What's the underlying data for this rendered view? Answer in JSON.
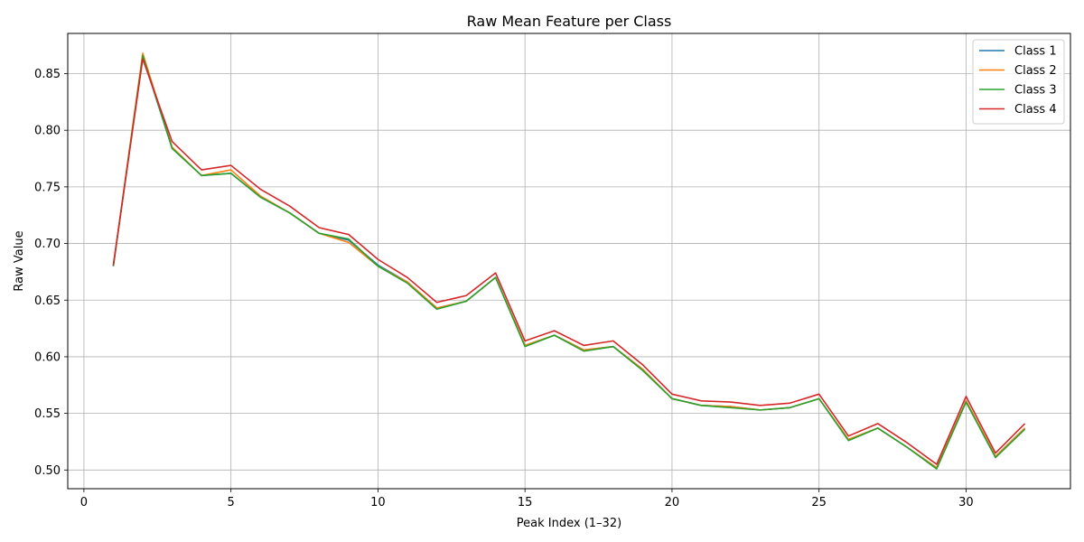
{
  "chart_data": {
    "type": "line",
    "title": "Raw Mean Feature per Class",
    "xlabel": "Peak Index (1–32)",
    "ylabel": "Raw Value",
    "xlim": [
      -0.55,
      33.55
    ],
    "ylim": [
      0.4835,
      0.8855
    ],
    "xticks": [
      0,
      5,
      10,
      15,
      20,
      25,
      30
    ],
    "yticks": [
      0.5,
      0.55,
      0.6,
      0.65,
      0.7,
      0.75,
      0.8,
      0.85
    ],
    "ytick_labels": [
      "0.50",
      "0.55",
      "0.60",
      "0.65",
      "0.70",
      "0.75",
      "0.80",
      "0.85"
    ],
    "grid": true,
    "legend_position": "top-right",
    "x": [
      1,
      2,
      3,
      4,
      5,
      6,
      7,
      8,
      9,
      10,
      11,
      12,
      13,
      14,
      15,
      16,
      17,
      18,
      19,
      20,
      21,
      22,
      23,
      24,
      25,
      26,
      27,
      28,
      29,
      30,
      31,
      32
    ],
    "series": [
      {
        "name": "Class 1",
        "color": "#1f77b4",
        "values": [
          0.68,
          0.865,
          0.784,
          0.76,
          0.762,
          0.741,
          0.727,
          0.709,
          0.703,
          0.681,
          0.666,
          0.643,
          0.649,
          0.67,
          0.61,
          0.619,
          0.606,
          0.609,
          0.589,
          0.563,
          0.557,
          0.556,
          0.553,
          0.555,
          0.563,
          0.527,
          0.537,
          0.52,
          0.502,
          0.561,
          0.512,
          0.537
        ]
      },
      {
        "name": "Class 2",
        "color": "#ff7f0e",
        "values": [
          0.68,
          0.868,
          0.785,
          0.76,
          0.765,
          0.742,
          0.727,
          0.709,
          0.701,
          0.68,
          0.666,
          0.643,
          0.649,
          0.67,
          0.61,
          0.619,
          0.606,
          0.609,
          0.589,
          0.563,
          0.557,
          0.556,
          0.553,
          0.555,
          0.563,
          0.527,
          0.537,
          0.52,
          0.502,
          0.561,
          0.512,
          0.537
        ]
      },
      {
        "name": "Class 3",
        "color": "#2ca02c",
        "values": [
          0.68,
          0.866,
          0.784,
          0.76,
          0.762,
          0.741,
          0.727,
          0.709,
          0.704,
          0.68,
          0.665,
          0.642,
          0.649,
          0.67,
          0.609,
          0.619,
          0.605,
          0.609,
          0.588,
          0.563,
          0.557,
          0.555,
          0.553,
          0.555,
          0.563,
          0.526,
          0.537,
          0.52,
          0.501,
          0.56,
          0.511,
          0.536
        ]
      },
      {
        "name": "Class 4",
        "color": "#d62728",
        "values": [
          0.681,
          0.863,
          0.79,
          0.765,
          0.769,
          0.748,
          0.733,
          0.714,
          0.708,
          0.686,
          0.67,
          0.648,
          0.654,
          0.674,
          0.614,
          0.623,
          0.61,
          0.614,
          0.593,
          0.567,
          0.561,
          0.56,
          0.557,
          0.559,
          0.567,
          0.53,
          0.541,
          0.524,
          0.505,
          0.565,
          0.515,
          0.541
        ]
      }
    ]
  }
}
